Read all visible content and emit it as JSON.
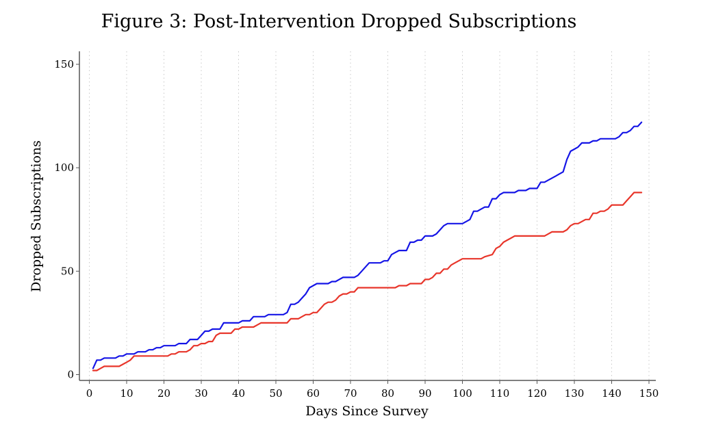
{
  "chart_data": {
    "type": "line",
    "title": "Figure 3: Post-Intervention Dropped Subscriptions",
    "xlabel": "Days Since Survey",
    "ylabel": "Dropped Subscriptions",
    "xlim": [
      0,
      150
    ],
    "ylim": [
      0,
      150
    ],
    "xticks": [
      0,
      10,
      20,
      30,
      40,
      50,
      60,
      70,
      80,
      90,
      100,
      110,
      120,
      130,
      140,
      150
    ],
    "yticks": [
      0,
      50,
      100,
      150
    ],
    "grid": "vertical dotted",
    "legend": "none",
    "series": [
      {
        "color": "#1515e6",
        "points": [
          [
            1,
            3
          ],
          [
            2,
            7
          ],
          [
            3,
            7
          ],
          [
            4,
            8
          ],
          [
            7,
            8
          ],
          [
            8,
            9
          ],
          [
            9,
            9
          ],
          [
            10,
            10
          ],
          [
            12,
            10
          ],
          [
            13,
            11
          ],
          [
            15,
            11
          ],
          [
            16,
            12
          ],
          [
            17,
            12
          ],
          [
            18,
            13
          ],
          [
            19,
            13
          ],
          [
            20,
            14
          ],
          [
            23,
            14
          ],
          [
            24,
            15
          ],
          [
            26,
            15
          ],
          [
            27,
            17
          ],
          [
            29,
            17
          ],
          [
            30,
            19
          ],
          [
            31,
            21
          ],
          [
            32,
            21
          ],
          [
            33,
            22
          ],
          [
            35,
            22
          ],
          [
            36,
            25
          ],
          [
            40,
            25
          ],
          [
            41,
            26
          ],
          [
            43,
            26
          ],
          [
            44,
            28
          ],
          [
            47,
            28
          ],
          [
            48,
            29
          ],
          [
            52,
            29
          ],
          [
            53,
            30
          ],
          [
            54,
            34
          ],
          [
            55,
            34
          ],
          [
            56,
            35
          ],
          [
            57,
            37
          ],
          [
            58,
            39
          ],
          [
            59,
            42
          ],
          [
            60,
            43
          ],
          [
            61,
            44
          ],
          [
            64,
            44
          ],
          [
            65,
            45
          ],
          [
            66,
            45
          ],
          [
            67,
            46
          ],
          [
            68,
            47
          ],
          [
            71,
            47
          ],
          [
            72,
            48
          ],
          [
            73,
            50
          ],
          [
            74,
            52
          ],
          [
            75,
            54
          ],
          [
            78,
            54
          ],
          [
            79,
            55
          ],
          [
            80,
            55
          ],
          [
            81,
            58
          ],
          [
            82,
            59
          ],
          [
            83,
            60
          ],
          [
            85,
            60
          ],
          [
            86,
            64
          ],
          [
            87,
            64
          ],
          [
            88,
            65
          ],
          [
            89,
            65
          ],
          [
            90,
            67
          ],
          [
            92,
            67
          ],
          [
            93,
            68
          ],
          [
            94,
            70
          ],
          [
            95,
            72
          ],
          [
            96,
            73
          ],
          [
            100,
            73
          ],
          [
            101,
            74
          ],
          [
            102,
            75
          ],
          [
            103,
            79
          ],
          [
            104,
            79
          ],
          [
            105,
            80
          ],
          [
            106,
            81
          ],
          [
            107,
            81
          ],
          [
            108,
            85
          ],
          [
            109,
            85
          ],
          [
            110,
            87
          ],
          [
            111,
            88
          ],
          [
            114,
            88
          ],
          [
            115,
            89
          ],
          [
            117,
            89
          ],
          [
            118,
            90
          ],
          [
            120,
            90
          ],
          [
            121,
            93
          ],
          [
            122,
            93
          ],
          [
            123,
            94
          ],
          [
            124,
            95
          ],
          [
            125,
            96
          ],
          [
            126,
            97
          ],
          [
            127,
            98
          ],
          [
            128,
            104
          ],
          [
            129,
            108
          ],
          [
            130,
            109
          ],
          [
            131,
            110
          ],
          [
            132,
            112
          ],
          [
            134,
            112
          ],
          [
            135,
            113
          ],
          [
            136,
            113
          ],
          [
            137,
            114
          ],
          [
            141,
            114
          ],
          [
            142,
            115
          ],
          [
            143,
            117
          ],
          [
            144,
            117
          ],
          [
            145,
            118
          ],
          [
            146,
            120
          ],
          [
            147,
            120
          ],
          [
            148,
            122
          ]
        ]
      },
      {
        "color": "#e8352a",
        "points": [
          [
            1,
            2
          ],
          [
            2,
            2
          ],
          [
            3,
            3
          ],
          [
            4,
            4
          ],
          [
            8,
            4
          ],
          [
            9,
            5
          ],
          [
            10,
            6
          ],
          [
            11,
            7
          ],
          [
            12,
            9
          ],
          [
            21,
            9
          ],
          [
            22,
            10
          ],
          [
            23,
            10
          ],
          [
            24,
            11
          ],
          [
            26,
            11
          ],
          [
            27,
            12
          ],
          [
            28,
            14
          ],
          [
            29,
            14
          ],
          [
            30,
            15
          ],
          [
            31,
            15
          ],
          [
            32,
            16
          ],
          [
            33,
            16
          ],
          [
            34,
            19
          ],
          [
            35,
            20
          ],
          [
            38,
            20
          ],
          [
            39,
            22
          ],
          [
            40,
            22
          ],
          [
            41,
            23
          ],
          [
            44,
            23
          ],
          [
            45,
            24
          ],
          [
            46,
            25
          ],
          [
            53,
            25
          ],
          [
            54,
            27
          ],
          [
            56,
            27
          ],
          [
            57,
            28
          ],
          [
            58,
            29
          ],
          [
            59,
            29
          ],
          [
            60,
            30
          ],
          [
            61,
            30
          ],
          [
            62,
            32
          ],
          [
            63,
            34
          ],
          [
            64,
            35
          ],
          [
            65,
            35
          ],
          [
            66,
            36
          ],
          [
            67,
            38
          ],
          [
            68,
            39
          ],
          [
            69,
            39
          ],
          [
            70,
            40
          ],
          [
            71,
            40
          ],
          [
            72,
            42
          ],
          [
            82,
            42
          ],
          [
            83,
            43
          ],
          [
            85,
            43
          ],
          [
            86,
            44
          ],
          [
            89,
            44
          ],
          [
            90,
            46
          ],
          [
            91,
            46
          ],
          [
            92,
            47
          ],
          [
            93,
            49
          ],
          [
            94,
            49
          ],
          [
            95,
            51
          ],
          [
            96,
            51
          ],
          [
            97,
            53
          ],
          [
            98,
            54
          ],
          [
            99,
            55
          ],
          [
            100,
            56
          ],
          [
            105,
            56
          ],
          [
            106,
            57
          ],
          [
            108,
            58
          ],
          [
            109,
            61
          ],
          [
            110,
            62
          ],
          [
            111,
            64
          ],
          [
            112,
            65
          ],
          [
            113,
            66
          ],
          [
            114,
            67
          ],
          [
            122,
            67
          ],
          [
            123,
            68
          ],
          [
            124,
            69
          ],
          [
            127,
            69
          ],
          [
            128,
            70
          ],
          [
            129,
            72
          ],
          [
            130,
            73
          ],
          [
            131,
            73
          ],
          [
            132,
            74
          ],
          [
            133,
            75
          ],
          [
            134,
            75
          ],
          [
            135,
            78
          ],
          [
            136,
            78
          ],
          [
            137,
            79
          ],
          [
            138,
            79
          ],
          [
            139,
            80
          ],
          [
            140,
            82
          ],
          [
            143,
            82
          ],
          [
            144,
            84
          ],
          [
            145,
            86
          ],
          [
            146,
            88
          ],
          [
            148,
            88
          ]
        ]
      }
    ]
  }
}
